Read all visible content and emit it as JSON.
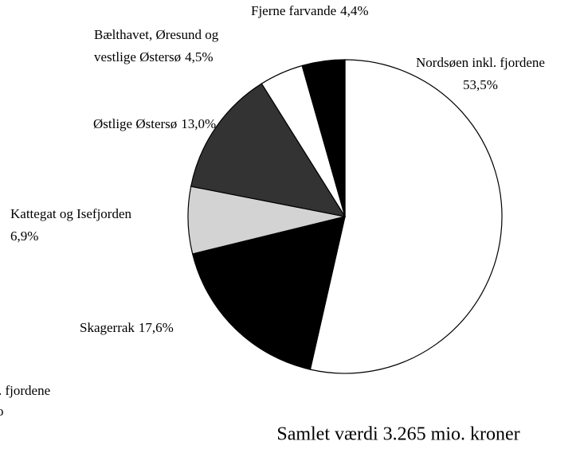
{
  "chart_data": {
    "type": "pie",
    "categories": [
      "Nordsøen inkl. fjordene",
      "Skagerrak",
      "Kattegat og Isefjorden",
      "Østlige Østersø",
      "Bælthavet, Øresund og vestlige Østersø",
      "Fjerne farvande"
    ],
    "values": [
      53.5,
      17.6,
      6.9,
      13.0,
      4.5,
      4.4
    ],
    "value_labels": [
      "53,5%",
      "17,6%",
      "6,9%",
      "13,0%",
      "4,5%",
      "4,4%"
    ],
    "colors": [
      "#ffffff",
      "#000000",
      "#d3d3d3",
      "#333333",
      "#ffffff",
      "#000000"
    ],
    "caption": "Samlet værdi 3.265 mio. kroner",
    "annotations": [
      ". fjordene",
      "o"
    ]
  }
}
